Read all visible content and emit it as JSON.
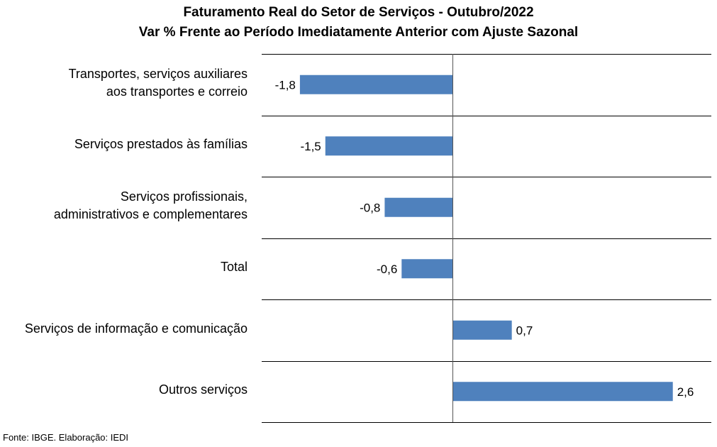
{
  "title": "Faturamento Real do Setor de Serviços - Outubro/2022",
  "subtitle": "Var % Frente ao Período Imediatamente Anterior com Ajuste Sazonal",
  "footer": "Fonte: IBGE. Elaboração: IEDI",
  "colors": {
    "bar": "#4f81bd",
    "grid": "#000000"
  },
  "chart_data": {
    "type": "bar",
    "orientation": "horizontal",
    "categories": [
      [
        "Transportes, serviços auxiliares",
        "aos transportes e correio"
      ],
      [
        "Serviços prestados às famílias"
      ],
      [
        "Serviços profissionais,",
        "administrativos e complementares"
      ],
      [
        "Total"
      ],
      [
        "Serviços de informação e comunicação"
      ],
      [
        "Outros serviços"
      ]
    ],
    "values": [
      -1.8,
      -1.5,
      -0.8,
      -0.6,
      0.7,
      2.6
    ],
    "value_labels": [
      "-1,8",
      "-1,5",
      "-0,8",
      "-0,6",
      "0,7",
      "2,6"
    ],
    "xlim": [
      -2.25,
      3.0
    ],
    "grid": "horizontal category separators",
    "legend": "none"
  }
}
